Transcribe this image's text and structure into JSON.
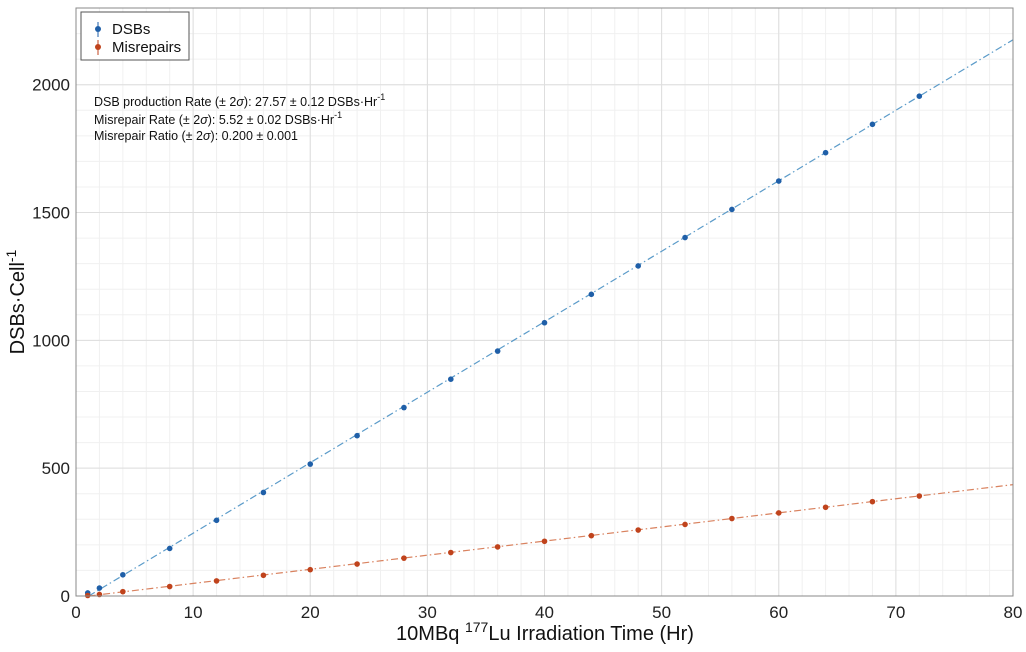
{
  "chart_data": {
    "type": "scatter",
    "xlabel": {
      "pre": "10MBq ",
      "sup": "177",
      "post": "Lu Irradiation Time (Hr)"
    },
    "ylabel": {
      "pre": "DSBs·Cell",
      "sup": "-1"
    },
    "xlim": [
      0,
      80
    ],
    "ylim": [
      0,
      2300
    ],
    "xticks": [
      0,
      10,
      20,
      30,
      40,
      50,
      60,
      70,
      80
    ],
    "yticks": [
      0,
      500,
      1000,
      1500,
      2000
    ],
    "grid": true,
    "legend_position": "top-left",
    "series": [
      {
        "name": "DSBs",
        "color": "#1f5fa8",
        "fit_color": "#5b9bc9",
        "x": [
          1,
          2,
          4,
          8,
          12,
          16,
          20,
          24,
          28,
          32,
          36,
          40,
          44,
          48,
          52,
          56,
          60,
          64,
          68,
          72
        ],
        "y": [
          12,
          31,
          83,
          186,
          296,
          405,
          516,
          627,
          737,
          848,
          958,
          1069,
          1180,
          1291,
          1402,
          1512,
          1623,
          1734,
          1845,
          1955
        ],
        "fit": {
          "slope": 27.57,
          "intercept": -30
        }
      },
      {
        "name": "Misrepairs",
        "color": "#c0431c",
        "fit_color": "#d9825f",
        "x": [
          1,
          2,
          4,
          8,
          12,
          16,
          20,
          24,
          28,
          32,
          36,
          40,
          44,
          48,
          52,
          56,
          60,
          64,
          68,
          72
        ],
        "y": [
          2,
          6,
          17,
          37,
          59,
          81,
          103,
          125,
          148,
          170,
          192,
          214,
          236,
          258,
          280,
          303,
          325,
          347,
          369,
          391
        ],
        "fit": {
          "slope": 5.52,
          "intercept": -6
        }
      }
    ],
    "annotations": [
      {
        "pre": "DSB production Rate (± 2",
        "sym": "σ",
        "mid": "): 27.57 ± 0.12 DSBs·Hr",
        "sup": "-1"
      },
      {
        "pre": "Misrepair Rate (± 2",
        "sym": "σ",
        "mid": "): 5.52 ± 0.02 DSBs·Hr",
        "sup": "-1"
      },
      {
        "pre": "Misrepair Ratio (± 2",
        "sym": "σ",
        "mid": "): 0.200 ± 0.001",
        "sup": ""
      }
    ]
  }
}
